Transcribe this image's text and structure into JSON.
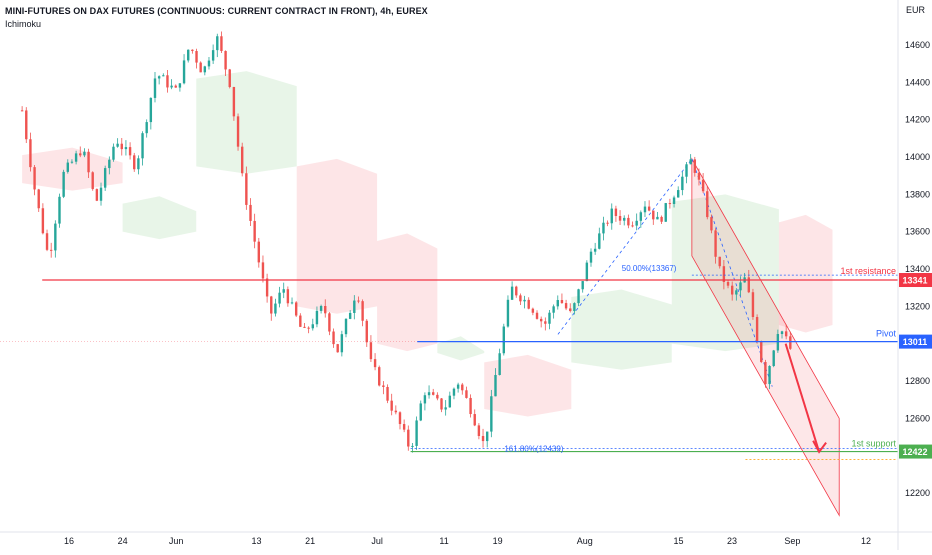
{
  "header": {
    "title": "MINI-FUTURES ON DAX FUTURES (CONTINUOUS: CURRENT CONTRACT IN FRONT), 4h, EUREX",
    "indicator": "Ichimoku",
    "currency": "EUR"
  },
  "colors": {
    "up": "#26a69a",
    "down": "#ef5350",
    "resistance": "#f23645",
    "pivot": "#2962ff",
    "support": "#4caf50",
    "fib": "#2962ff",
    "cloud_bull": "rgba(76,175,80,0.13)",
    "cloud_bear": "rgba(242,54,69,0.13)",
    "channel": "rgba(242,54,69,0.12)"
  },
  "chart_data": {
    "type": "candlestick",
    "title": "MINI-FUTURES ON DAX FUTURES (CONTINUOUS: CURRENT CONTRACT IN FRONT), 4h, EUREX",
    "y_axis": {
      "ticks": [
        12200,
        12400,
        12600,
        12800,
        13000,
        13200,
        13400,
        13600,
        13800,
        14000,
        14200,
        14400,
        14600
      ],
      "range": [
        12050,
        14760
      ]
    },
    "x_axis": {
      "ticks": [
        "16",
        "24",
        "Jun",
        "13",
        "21",
        "Jul",
        "11",
        "19",
        "Aug",
        "15",
        "23",
        "Sep",
        "12"
      ]
    },
    "price_labels": [
      {
        "value": 13341,
        "text": "13341",
        "role": "resistance"
      },
      {
        "value": 13011,
        "text": "13011",
        "role": "pivot"
      },
      {
        "value": 12422,
        "text": "12422",
        "role": "support"
      }
    ],
    "levels": [
      {
        "name": "1st resistance",
        "value": 13341,
        "start": "May 12"
      },
      {
        "name": "Pivot",
        "value": 13011,
        "start": "Jul 7"
      },
      {
        "name": "1st support",
        "value": 12422,
        "start": "Jul 6"
      }
    ],
    "fib_labels": [
      {
        "text": "50.00%(13367)",
        "value": 13367
      },
      {
        "text": "161.80%(12439)",
        "value": 12439
      }
    ],
    "price_path": [
      [
        "May 9",
        14250
      ],
      [
        "May 11",
        13800
      ],
      [
        "May 13",
        13450
      ],
      [
        "May 15",
        13900
      ],
      [
        "May 18",
        14050
      ],
      [
        "May 20",
        13750
      ],
      [
        "May 23",
        14100
      ],
      [
        "May 26",
        13950
      ],
      [
        "May 29",
        14450
      ],
      [
        "Jun 1",
        14350
      ],
      [
        "Jun 3",
        14600
      ],
      [
        "Jun 5",
        14450
      ],
      [
        "Jun 7",
        14650
      ],
      [
        "Jun 9",
        14400
      ],
      [
        "Jun 11",
        13850
      ],
      [
        "Jun 13",
        13500
      ],
      [
        "Jun 15",
        13150
      ],
      [
        "Jun 17",
        13300
      ],
      [
        "Jun 20",
        13050
      ],
      [
        "Jun 23",
        13200
      ],
      [
        "Jun 25",
        12950
      ],
      [
        "Jun 28",
        13300
      ],
      [
        "Jun 30",
        12900
      ],
      [
        "Jul 2",
        12750
      ],
      [
        "Jul 4",
        12600
      ],
      [
        "Jul 6",
        12430
      ],
      [
        "Jul 8",
        12750
      ],
      [
        "Jul 11",
        12650
      ],
      [
        "Jul 13",
        12800
      ],
      [
        "Jul 15",
        12650
      ],
      [
        "Jul 17",
        12450
      ],
      [
        "Jul 19",
        12900
      ],
      [
        "Jul 21",
        13300
      ],
      [
        "Jul 24",
        13200
      ],
      [
        "Jul 26",
        13100
      ],
      [
        "Jul 28",
        13250
      ],
      [
        "Jul 30",
        13150
      ],
      [
        "Aug 2",
        13500
      ],
      [
        "Aug 5",
        13700
      ],
      [
        "Aug 8",
        13650
      ],
      [
        "Aug 10",
        13750
      ],
      [
        "Aug 12",
        13650
      ],
      [
        "Aug 15",
        13850
      ],
      [
        "Aug 17",
        13990
      ],
      [
        "Aug 19",
        13750
      ],
      [
        "Aug 21",
        13400
      ],
      [
        "Aug 23",
        13250
      ],
      [
        "Aug 25",
        13350
      ],
      [
        "Aug 28",
        12800
      ],
      [
        "Aug 30",
        13100
      ],
      [
        "Sep 1",
        12950
      ]
    ]
  }
}
